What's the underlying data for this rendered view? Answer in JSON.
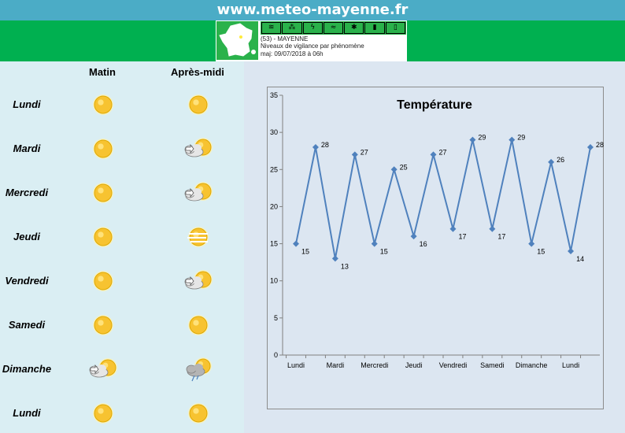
{
  "header": {
    "site_title": "www.meteo-mayenne.fr"
  },
  "vigilance": {
    "line1": "(53) - MAYENNE",
    "line2": "Niveaux de vigilance par phénomène",
    "line3": "maj: 09/07/2018 à 06h",
    "icons": [
      "wind-icon",
      "rain-flood-icon",
      "storm-icon",
      "flood-icon",
      "snow-ice-icon",
      "heat-icon",
      "cold-icon"
    ],
    "status_color": "#2ab24b"
  },
  "forecast": {
    "col_morning": "Matin",
    "col_afternoon": "Après-midi",
    "days": [
      {
        "label": "Lundi",
        "morning": "sun-icon",
        "afternoon": "sun-icon"
      },
      {
        "label": "Mardi",
        "morning": "sun-icon",
        "afternoon": "sun-cloud-icon"
      },
      {
        "label": "Mercredi",
        "morning": "sun-icon",
        "afternoon": "sun-cloud-icon"
      },
      {
        "label": "Jeudi",
        "morning": "sun-icon",
        "afternoon": "sun-haze-icon"
      },
      {
        "label": "Vendredi",
        "morning": "sun-icon",
        "afternoon": "sun-cloud-icon"
      },
      {
        "label": "Samedi",
        "morning": "sun-icon",
        "afternoon": "sun-icon"
      },
      {
        "label": "Dimanche",
        "morning": "sun-cloud-icon",
        "afternoon": "storm-cloud-icon"
      },
      {
        "label": "Lundi",
        "morning": "sun-icon",
        "afternoon": "sun-icon"
      }
    ]
  },
  "chart_data": {
    "type": "line",
    "title": "Température",
    "categories": [
      "Lundi",
      "Lundi",
      "Mardi",
      "Mardi",
      "Mercredi",
      "Mercredi",
      "Jeudi",
      "Jeudi",
      "Vendredi",
      "Vendredi",
      "Samedi",
      "Samedi",
      "Dimanche",
      "Dimanche",
      "Lundi",
      "Lundi"
    ],
    "tick_labels": [
      "Lundi",
      "Mardi",
      "Mercredi",
      "Jeudi",
      "Vendredi",
      "Samedi",
      "Dimanche",
      "Lundi"
    ],
    "values": [
      15,
      28,
      13,
      27,
      15,
      25,
      16,
      27,
      17,
      29,
      17,
      29,
      15,
      26,
      14,
      28
    ],
    "ylim": [
      0,
      35
    ],
    "yticks": [
      0,
      5,
      10,
      15,
      20,
      25,
      30,
      35
    ],
    "grid": false,
    "line_color": "#4f81bd"
  }
}
